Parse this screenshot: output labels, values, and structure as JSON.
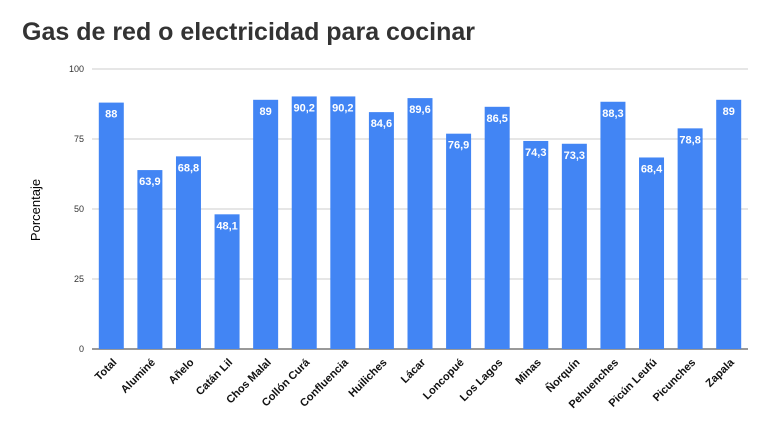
{
  "chart_data": {
    "type": "bar",
    "title": "Gas de red o electricidad para cocinar",
    "xlabel": "",
    "ylabel": "Porcentaje",
    "ylim": [
      0,
      100
    ],
    "yticks": [
      "0",
      "25",
      "50",
      "75",
      "100"
    ],
    "grid": true,
    "color": "#4285f4",
    "categories": [
      "Total",
      "Aluminé",
      "Añelo",
      "Catán Lil",
      "Chos Malal",
      "Collón Curá",
      "Confluencia",
      "Huiliches",
      "Lácar",
      "Loncopué",
      "Los Lagos",
      "Minas",
      "Ñorquín",
      "Pehuenches",
      "Picún Leufú",
      "Picunches",
      "Zapala"
    ],
    "values": [
      88,
      63.9,
      68.8,
      48.1,
      89,
      90.2,
      90.2,
      84.6,
      89.6,
      76.9,
      86.5,
      74.3,
      73.3,
      88.3,
      68.4,
      78.8,
      89
    ],
    "labels": [
      "88",
      "63,9",
      "68,8",
      "48,1",
      "89",
      "90,2",
      "90,2",
      "84,6",
      "89,6",
      "76,9",
      "86,5",
      "74,3",
      "73,3",
      "88,3",
      "68,4",
      "78,8",
      "89"
    ]
  }
}
